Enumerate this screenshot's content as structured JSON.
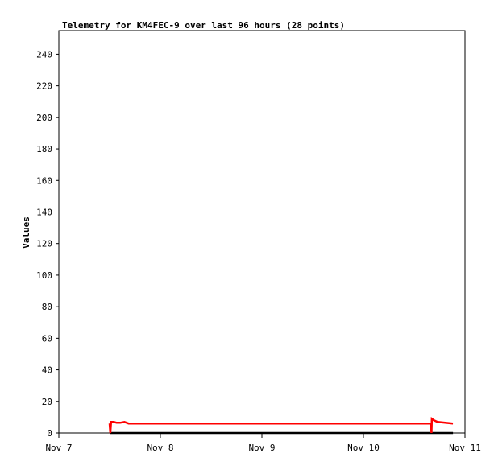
{
  "chart_data": {
    "type": "line",
    "title": "Telemetry for KM4FEC-9 over last 96 hours (28 points)",
    "xlabel": "",
    "ylabel": "Values",
    "ylim": [
      0,
      255
    ],
    "yticks": [
      0,
      20,
      40,
      60,
      80,
      100,
      120,
      140,
      160,
      180,
      200,
      220,
      240
    ],
    "xlim": [
      "Nov 7 00:00",
      "Nov 11 00:00"
    ],
    "xticks": [
      {
        "label": "Nov 7",
        "at": "Nov 7 00:00"
      },
      {
        "label": "Nov 8",
        "at": "Nov 8 00:00"
      },
      {
        "label": "Nov 9",
        "at": "Nov 9 00:00"
      },
      {
        "label": "Nov 10",
        "at": "Nov 10 00:00"
      },
      {
        "label": "Nov 11",
        "at": "Nov 11 00:00"
      }
    ],
    "grid": false,
    "series": [
      {
        "color": "#ff0000",
        "points": [
          [
            "Nov 7 12:00",
            6
          ],
          [
            "Nov 7 12:10",
            0
          ],
          [
            "Nov 7 12:20",
            7
          ],
          [
            "Nov 7 13:00",
            7
          ],
          [
            "Nov 7 13:40",
            6.5
          ],
          [
            "Nov 7 14:30",
            6.5
          ],
          [
            "Nov 7 15:30",
            7
          ],
          [
            "Nov 7 16:30",
            6
          ],
          [
            "Nov 8 00:00",
            6
          ],
          [
            "Nov 8 12:00",
            6
          ],
          [
            "Nov 9 00:00",
            6
          ],
          [
            "Nov 9 12:00",
            6
          ],
          [
            "Nov 10 00:00",
            6
          ],
          [
            "Nov 10 16:00",
            6
          ],
          [
            "Nov 10 16:05",
            0
          ],
          [
            "Nov 10 16:10",
            9
          ],
          [
            "Nov 10 16:40",
            8
          ],
          [
            "Nov 10 17:30",
            7
          ],
          [
            "Nov 10 21:10",
            6
          ]
        ]
      },
      {
        "color": "#000000",
        "points": [
          [
            "Nov 7 12:00",
            0
          ],
          [
            "Nov 10 21:10",
            0
          ]
        ]
      }
    ]
  }
}
